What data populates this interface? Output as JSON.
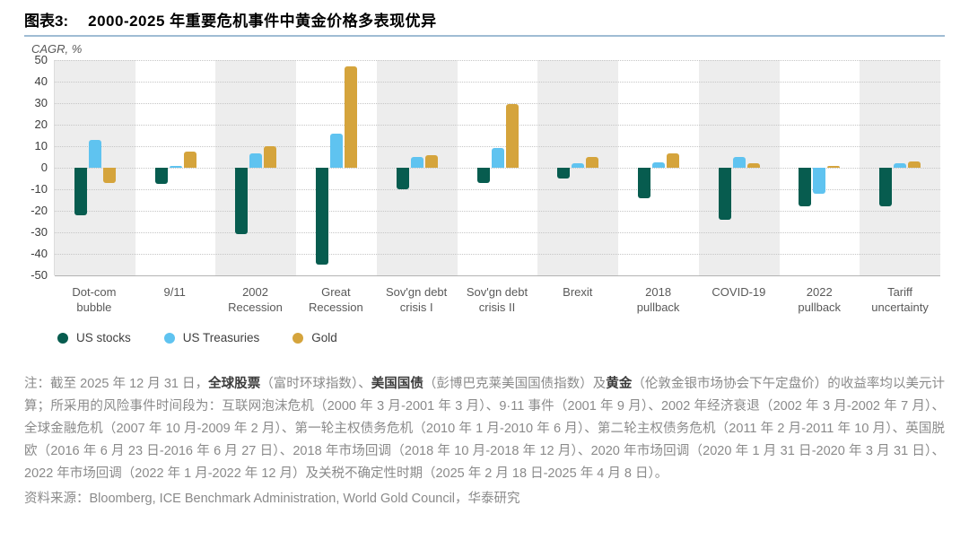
{
  "header": {
    "figure_label": "图表3:",
    "title": "2000-2025 年重要危机事件中黄金价格多表现优异"
  },
  "axis": {
    "unit_label": "CAGR, %"
  },
  "chart_data": {
    "type": "bar",
    "title": "2000-2025 年重要危机事件中黄金价格多表现优异",
    "ylabel": "CAGR, %",
    "ylim": [
      -50,
      50
    ],
    "ytick_step": 10,
    "grid": true,
    "legend_position": "bottom-left",
    "stripe_color": "#EDEDED",
    "categories": [
      "Dot-com\nbubble",
      "9/11",
      "2002\nRecession",
      "Great\nRecession",
      "Sov'gn debt\ncrisis I",
      "Sov'gn debt\ncrisis II",
      "Brexit",
      "2018\npullback",
      "COVID-19",
      "2022\npullback",
      "Tariff\nuncertainty"
    ],
    "series": [
      {
        "name": "US stocks",
        "color": "#075C4F",
        "values": [
          -22,
          -7.5,
          -31,
          -45,
          -10,
          -7,
          -5,
          -14,
          -24,
          -18,
          -18
        ]
      },
      {
        "name": "US Treasuries",
        "color": "#5FC3F0",
        "values": [
          13,
          1,
          6.5,
          16,
          5,
          9,
          2,
          2.5,
          5,
          -12,
          2
        ]
      },
      {
        "name": "Gold",
        "color": "#D5A43C",
        "values": [
          -7,
          7.5,
          10,
          47,
          6,
          29.5,
          5,
          6.5,
          2,
          1,
          3
        ]
      }
    ]
  },
  "note": {
    "segments": [
      {
        "t": "注：截至 2025 年 12 月 31 日，",
        "b": false
      },
      {
        "t": "全球股票",
        "b": true
      },
      {
        "t": "（富时环球指数）、",
        "b": false
      },
      {
        "t": "美国国债",
        "b": true
      },
      {
        "t": "（彭博巴克莱美国国债指数）及",
        "b": false
      },
      {
        "t": "黄金",
        "b": true
      },
      {
        "t": "（伦敦金银市场协会下午定盘价）的收益率均以美元计算；所采用的风险事件时间段为：互联网泡沫危机（2000 年 3 月-2001 年 3 月）、9·11 事件（2001 年 9 月）、2002 年经济衰退（2002 年 3 月-2002 年 7 月）、全球金融危机（2007 年 10 月-2009 年 2 月）、第一轮主权债务危机（2010 年 1 月-2010 年 6 月）、第二轮主权债务危机（2011 年 2 月-2011 年 10 月）、英国脱欧（2016 年 6 月 23 日-2016 年 6 月 27 日）、2018 年市场回调（2018 年 10 月-2018 年 12 月）、2020 年市场回调（2020 年 1 月 31 日-2020 年 3 月 31 日）、2022 年市场回调（2022 年 1 月-2022 年 12 月）及关税不确定性时期（2025 年 2 月 18 日-2025 年 4 月 8 日）。",
        "b": false
      }
    ]
  },
  "source": {
    "text": "资料来源：Bloomberg, ICE Benchmark Administration, World Gold Council，华泰研究"
  }
}
